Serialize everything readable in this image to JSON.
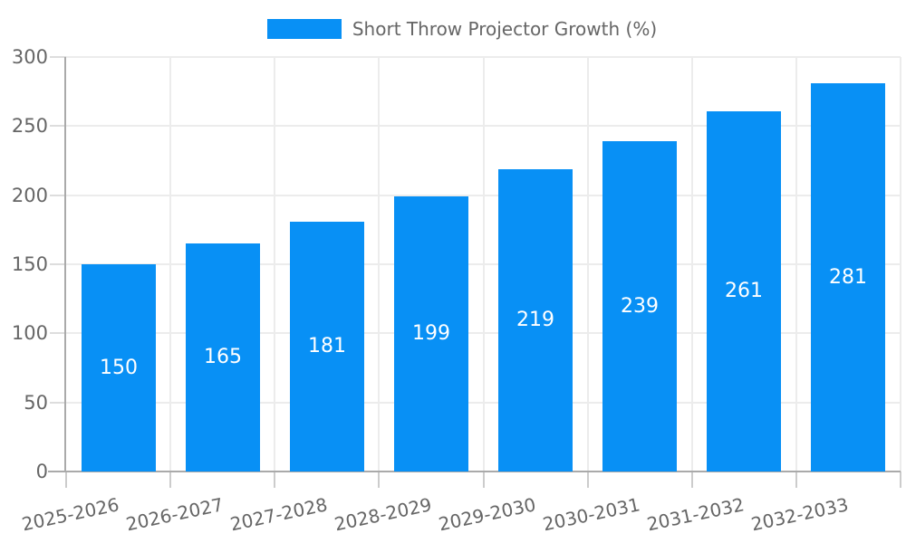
{
  "legend": {
    "label": "Short Throw Projector Growth (%)"
  },
  "chart_data": {
    "type": "bar",
    "title": "Short Throw Projector Growth (%)",
    "categories": [
      "2025-2026",
      "2026-2027",
      "2027-2028",
      "2028-2029",
      "2029-2030",
      "2030-2031",
      "2031-2032",
      "2032-2033"
    ],
    "values": [
      150,
      165,
      181,
      199,
      219,
      239,
      261,
      281
    ],
    "xlabel": "",
    "ylabel": "",
    "ylim": [
      0,
      300
    ],
    "ytick_step": 50,
    "ytick_labels": [
      "0",
      "50",
      "100",
      "150",
      "200",
      "250",
      "300"
    ],
    "grid": true,
    "legend_position": "top-center",
    "bar_color": "#0890f5",
    "bar_label_color": "#ffffff",
    "axis_text_color": "#666666",
    "grid_color": "#ececec",
    "axis_line_color": "#aaaaaa"
  }
}
